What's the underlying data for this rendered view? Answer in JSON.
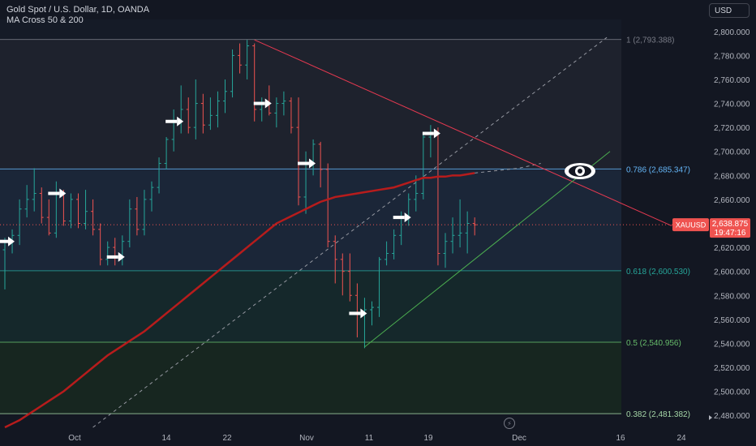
{
  "header": {
    "symbol_title": "Gold Spot / U.S. Dollar, 1D, OANDA",
    "indicator": "MA Cross 50 & 200",
    "currency_button": "USD"
  },
  "price_tag": {
    "symbol": "XAUUSD",
    "price": "2,638.875",
    "countdown": "19:47:16"
  },
  "colors": {
    "background": "#131722",
    "up": "#26a69a",
    "down": "#ef5350",
    "ma": "#b71c1c",
    "trendline": "#e53950",
    "support": "#4caf50",
    "fib_line": "#5d6b7a"
  },
  "chart_data": {
    "type": "candlestick",
    "y_axis": {
      "range": [
        2470,
        2810
      ],
      "ticks": [
        2800,
        2780,
        2760,
        2740,
        2720,
        2700,
        2680,
        2660,
        2640,
        2620,
        2600,
        2580,
        2560,
        2540,
        2520,
        2500,
        2480
      ],
      "tick_labels": [
        "2,800.000",
        "2,780.000",
        "2,760.000",
        "2,740.000",
        "2,720.000",
        "2,700.000",
        "2,680.000",
        "2,660.000",
        "2,640.000",
        "2,620.000",
        "2,600.000",
        "2,580.000",
        "2,560.000",
        "2,540.000",
        "2,520.000",
        "2,500.000",
        "2,480.000"
      ]
    },
    "x_axis": {
      "labels": [
        "Oct",
        "14",
        "22",
        "Nov",
        "11",
        "19",
        "Dec",
        "16",
        "24"
      ]
    },
    "fib_levels": [
      {
        "label": "1 (2,793.388)",
        "price": 2793.388,
        "color": "#787b86"
      },
      {
        "label": "0.786 (2,685.347)",
        "price": 2685.347,
        "color": "#64b5f6"
      },
      {
        "label": "0.618 (2,600.530)",
        "price": 2600.53,
        "color": "#26a69a"
      },
      {
        "label": "0.5 (2,540.956)",
        "price": 2540.956,
        "color": "#66bb6a"
      },
      {
        "label": "0.382 (2,481.382)",
        "price": 2481.382,
        "color": "#a5d6a7"
      }
    ],
    "candles": [
      {
        "o": 2618,
        "h": 2628,
        "l": 2585,
        "c": 2625
      },
      {
        "o": 2625,
        "h": 2635,
        "l": 2615,
        "c": 2630
      },
      {
        "o": 2630,
        "h": 2660,
        "l": 2622,
        "c": 2652
      },
      {
        "o": 2652,
        "h": 2672,
        "l": 2645,
        "c": 2660
      },
      {
        "o": 2660,
        "h": 2686,
        "l": 2650,
        "c": 2665
      },
      {
        "o": 2665,
        "h": 2670,
        "l": 2640,
        "c": 2645
      },
      {
        "o": 2645,
        "h": 2660,
        "l": 2630,
        "c": 2632
      },
      {
        "o": 2632,
        "h": 2675,
        "l": 2628,
        "c": 2665
      },
      {
        "o": 2665,
        "h": 2668,
        "l": 2638,
        "c": 2642
      },
      {
        "o": 2642,
        "h": 2665,
        "l": 2636,
        "c": 2660
      },
      {
        "o": 2660,
        "h": 2665,
        "l": 2636,
        "c": 2640
      },
      {
        "o": 2640,
        "h": 2668,
        "l": 2635,
        "c": 2650
      },
      {
        "o": 2650,
        "h": 2660,
        "l": 2630,
        "c": 2635
      },
      {
        "o": 2635,
        "h": 2640,
        "l": 2605,
        "c": 2610
      },
      {
        "o": 2610,
        "h": 2625,
        "l": 2605,
        "c": 2620
      },
      {
        "o": 2620,
        "h": 2628,
        "l": 2605,
        "c": 2612
      },
      {
        "o": 2612,
        "h": 2630,
        "l": 2605,
        "c": 2625
      },
      {
        "o": 2625,
        "h": 2660,
        "l": 2620,
        "c": 2652
      },
      {
        "o": 2652,
        "h": 2662,
        "l": 2630,
        "c": 2635
      },
      {
        "o": 2635,
        "h": 2668,
        "l": 2630,
        "c": 2660
      },
      {
        "o": 2660,
        "h": 2675,
        "l": 2650,
        "c": 2670
      },
      {
        "o": 2670,
        "h": 2695,
        "l": 2665,
        "c": 2690
      },
      {
        "o": 2690,
        "h": 2712,
        "l": 2685,
        "c": 2710
      },
      {
        "o": 2710,
        "h": 2735,
        "l": 2700,
        "c": 2725
      },
      {
        "o": 2725,
        "h": 2755,
        "l": 2715,
        "c": 2735
      },
      {
        "o": 2735,
        "h": 2745,
        "l": 2715,
        "c": 2720
      },
      {
        "o": 2720,
        "h": 2760,
        "l": 2710,
        "c": 2740
      },
      {
        "o": 2740,
        "h": 2748,
        "l": 2715,
        "c": 2722
      },
      {
        "o": 2722,
        "h": 2745,
        "l": 2718,
        "c": 2730
      },
      {
        "o": 2730,
        "h": 2750,
        "l": 2720,
        "c": 2742
      },
      {
        "o": 2742,
        "h": 2760,
        "l": 2732,
        "c": 2750
      },
      {
        "o": 2750,
        "h": 2785,
        "l": 2745,
        "c": 2780
      },
      {
        "o": 2780,
        "h": 2790,
        "l": 2765,
        "c": 2772
      },
      {
        "o": 2772,
        "h": 2793,
        "l": 2760,
        "c": 2788
      },
      {
        "o": 2788,
        "h": 2790,
        "l": 2725,
        "c": 2735
      },
      {
        "o": 2735,
        "h": 2745,
        "l": 2725,
        "c": 2740
      },
      {
        "o": 2740,
        "h": 2755,
        "l": 2730,
        "c": 2732
      },
      {
        "o": 2732,
        "h": 2745,
        "l": 2720,
        "c": 2740
      },
      {
        "o": 2740,
        "h": 2750,
        "l": 2730,
        "c": 2742
      },
      {
        "o": 2742,
        "h": 2745,
        "l": 2715,
        "c": 2720
      },
      {
        "o": 2720,
        "h": 2745,
        "l": 2655,
        "c": 2662
      },
      {
        "o": 2662,
        "h": 2700,
        "l": 2648,
        "c": 2690
      },
      {
        "o": 2690,
        "h": 2710,
        "l": 2680,
        "c": 2706
      },
      {
        "o": 2706,
        "h": 2708,
        "l": 2670,
        "c": 2685
      },
      {
        "o": 2685,
        "h": 2690,
        "l": 2620,
        "c": 2625
      },
      {
        "o": 2625,
        "h": 2630,
        "l": 2590,
        "c": 2610
      },
      {
        "o": 2610,
        "h": 2615,
        "l": 2580,
        "c": 2600
      },
      {
        "o": 2600,
        "h": 2615,
        "l": 2575,
        "c": 2580
      },
      {
        "o": 2580,
        "h": 2590,
        "l": 2545,
        "c": 2565
      },
      {
        "o": 2565,
        "h": 2578,
        "l": 2536,
        "c": 2568
      },
      {
        "o": 2568,
        "h": 2575,
        "l": 2555,
        "c": 2570
      },
      {
        "o": 2570,
        "h": 2612,
        "l": 2562,
        "c": 2610
      },
      {
        "o": 2610,
        "h": 2625,
        "l": 2605,
        "c": 2615
      },
      {
        "o": 2615,
        "h": 2635,
        "l": 2610,
        "c": 2630
      },
      {
        "o": 2630,
        "h": 2650,
        "l": 2622,
        "c": 2645
      },
      {
        "o": 2645,
        "h": 2665,
        "l": 2638,
        "c": 2660
      },
      {
        "o": 2660,
        "h": 2680,
        "l": 2650,
        "c": 2665
      },
      {
        "o": 2665,
        "h": 2715,
        "l": 2660,
        "c": 2712
      },
      {
        "o": 2712,
        "h": 2722,
        "l": 2695,
        "c": 2715
      },
      {
        "o": 2715,
        "h": 2720,
        "l": 2605,
        "c": 2615
      },
      {
        "o": 2615,
        "h": 2632,
        "l": 2603,
        "c": 2625
      },
      {
        "o": 2625,
        "h": 2645,
        "l": 2615,
        "c": 2630
      },
      {
        "o": 2630,
        "h": 2660,
        "l": 2620,
        "c": 2632
      },
      {
        "o": 2632,
        "h": 2650,
        "l": 2615,
        "c": 2640
      },
      {
        "o": 2640,
        "h": 2645,
        "l": 2630,
        "c": 2638.875
      }
    ],
    "ma200": [
      2470,
      2473,
      2476,
      2480,
      2484,
      2488,
      2492,
      2496,
      2500,
      2505,
      2510,
      2515,
      2520,
      2525,
      2530,
      2534,
      2538,
      2542,
      2546,
      2550,
      2555,
      2560,
      2565,
      2570,
      2575,
      2580,
      2585,
      2590,
      2595,
      2600,
      2605,
      2610,
      2615,
      2620,
      2625,
      2630,
      2635,
      2640,
      2643,
      2646,
      2649,
      2652,
      2655,
      2658,
      2660,
      2662,
      2663,
      2664,
      2665,
      2666,
      2667,
      2668,
      2669,
      2670,
      2672,
      2674,
      2676,
      2678,
      2678,
      2679,
      2679,
      2680,
      2680,
      2681,
      2682
    ],
    "ma200_projection": [
      2682,
      2684,
      2686,
      2690
    ],
    "signal_arrows": [
      0,
      7,
      15,
      23,
      35,
      41,
      48,
      54,
      58
    ],
    "trendline_resistance": {
      "from_candle": 34,
      "from_price": 2793,
      "to_candle": 75,
      "to_price": 2638
    },
    "trendline_support": {
      "from_candle": 49,
      "from_price": 2537,
      "to_candle": 80,
      "to_price": 2710
    },
    "diagonal_dashed": {
      "from_candle": 12,
      "from_price": 2470,
      "to_candle": 82,
      "to_price": 2795
    },
    "marker": "eye-icon"
  }
}
